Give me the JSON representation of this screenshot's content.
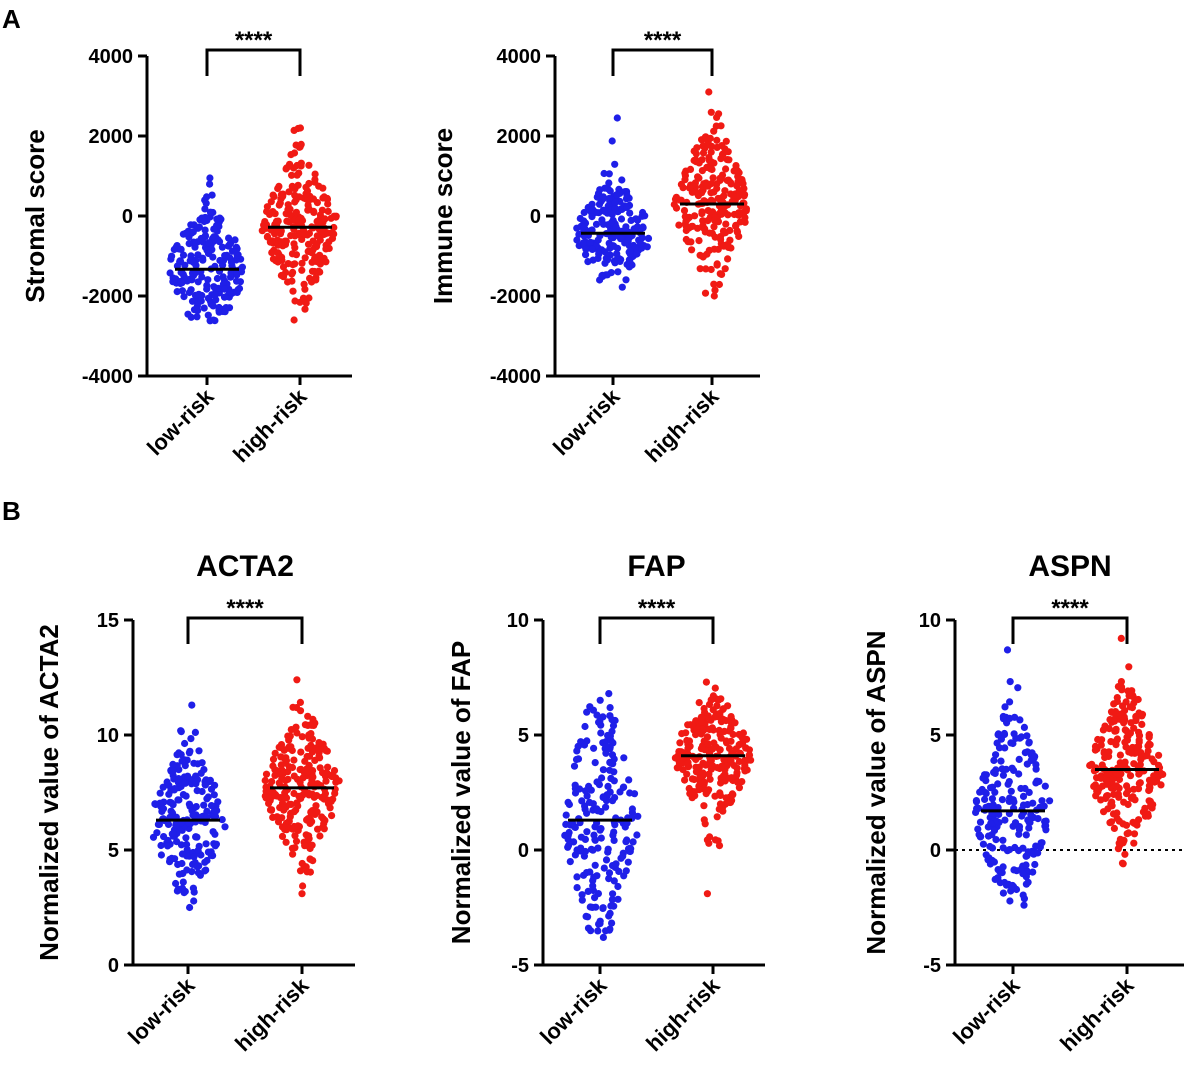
{
  "panel_labels": [
    "A",
    "B"
  ],
  "colors": {
    "low": "#1f1fe8",
    "high": "#f01a14",
    "axis": "#000000"
  },
  "chart_data": [
    {
      "type": "scatter",
      "panel": "A",
      "title": "",
      "ylabel": "Stromal score",
      "categories": [
        "low-risk",
        "high-risk"
      ],
      "yticks": [
        "4000",
        "2000",
        "0",
        "-2000",
        "-4000"
      ],
      "ytick_values": [
        4000,
        2000,
        0,
        -2000,
        -4000
      ],
      "ylim": [
        -4000,
        4000
      ],
      "significance": "****",
      "zero_line": false,
      "series": [
        {
          "name": "low-risk",
          "median": -1330,
          "min": -2620,
          "max": 950,
          "q1": -1850,
          "q3": -700,
          "n": 210
        },
        {
          "name": "high-risk",
          "median": -280,
          "min": -2600,
          "max": 2200,
          "q1": -800,
          "q3": 400,
          "n": 240
        }
      ]
    },
    {
      "type": "scatter",
      "panel": "A",
      "title": "",
      "ylabel": "Immune score",
      "categories": [
        "low-risk",
        "high-risk"
      ],
      "yticks": [
        "4000",
        "2000",
        "0",
        "-2000",
        "-4000"
      ],
      "ytick_values": [
        4000,
        2000,
        0,
        -2000,
        -4000
      ],
      "ylim": [
        -4000,
        4000
      ],
      "significance": "****",
      "zero_line": false,
      "series": [
        {
          "name": "low-risk",
          "median": -430,
          "min": -1780,
          "max": 2450,
          "q1": -850,
          "q3": 100,
          "n": 210
        },
        {
          "name": "high-risk",
          "median": 300,
          "min": -2000,
          "max": 3100,
          "q1": -300,
          "q3": 1000,
          "n": 240
        }
      ]
    },
    {
      "type": "scatter",
      "panel": "B",
      "title": "ACTA2",
      "ylabel": "Normalized value of ACTA2",
      "categories": [
        "low-risk",
        "high-risk"
      ],
      "yticks": [
        "15",
        "10",
        "5",
        "0"
      ],
      "ytick_values": [
        15,
        10,
        5,
        0
      ],
      "ylim": [
        0,
        15
      ],
      "significance": "****",
      "zero_line": false,
      "series": [
        {
          "name": "low-risk",
          "median": 6.3,
          "min": 2.5,
          "max": 11.3,
          "q1": 5.2,
          "q3": 7.4,
          "n": 210
        },
        {
          "name": "high-risk",
          "median": 7.7,
          "min": 3.1,
          "max": 12.4,
          "q1": 6.6,
          "q3": 8.8,
          "n": 240
        }
      ]
    },
    {
      "type": "scatter",
      "panel": "B",
      "title": "FAP",
      "ylabel": "Normalized value of FAP",
      "categories": [
        "low-risk",
        "high-risk"
      ],
      "yticks": [
        "10",
        "5",
        "0",
        "-5"
      ],
      "ytick_values": [
        10,
        5,
        0,
        -5
      ],
      "ylim": [
        -5,
        10
      ],
      "significance": "****",
      "zero_line": false,
      "series": [
        {
          "name": "low-risk",
          "median": 1.3,
          "min": -3.8,
          "max": 6.8,
          "q1": -0.5,
          "q3": 3.2,
          "n": 210
        },
        {
          "name": "high-risk",
          "median": 4.1,
          "min": -1.9,
          "max": 7.3,
          "q1": 3.0,
          "q3": 5.0,
          "n": 240
        }
      ]
    },
    {
      "type": "scatter",
      "panel": "B",
      "title": "ASPN",
      "ylabel": "Normalized value of ASPN",
      "categories": [
        "low-risk",
        "high-risk"
      ],
      "yticks": [
        "10",
        "5",
        "0",
        "-5"
      ],
      "ytick_values": [
        10,
        5,
        0,
        -5
      ],
      "ylim": [
        -5,
        10
      ],
      "significance": "****",
      "zero_line": true,
      "series": [
        {
          "name": "low-risk",
          "median": 1.7,
          "min": -2.4,
          "max": 8.7,
          "q1": 0.3,
          "q3": 3.2,
          "n": 210
        },
        {
          "name": "high-risk",
          "median": 3.5,
          "min": -0.6,
          "max": 9.2,
          "q1": 2.4,
          "q3": 4.7,
          "n": 240
        }
      ]
    }
  ]
}
